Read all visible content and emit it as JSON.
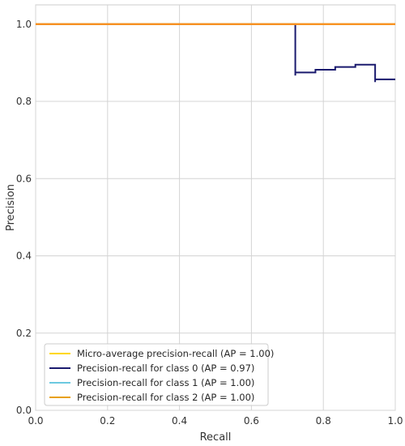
{
  "chart_data": {
    "type": "line",
    "title": "",
    "xlabel": "Recall",
    "ylabel": "Precision",
    "xlim": [
      0.0,
      1.0
    ],
    "ylim": [
      0.0,
      1.05
    ],
    "x_ticks": [
      "0.0",
      "0.2",
      "0.4",
      "0.6",
      "0.8",
      "1.0"
    ],
    "y_ticks": [
      "0.0",
      "0.2",
      "0.4",
      "0.6",
      "0.8",
      "1.0"
    ],
    "x_tick_values": [
      0.0,
      0.2,
      0.4,
      0.6,
      0.8,
      1.0
    ],
    "y_tick_values": [
      0.0,
      0.2,
      0.4,
      0.6,
      0.8,
      1.0
    ],
    "grid": true,
    "legend_position": "bottom-left",
    "series": [
      {
        "name": "Micro-average precision-recall (AP = 1.00)",
        "color": "#ffd700",
        "step": true,
        "x": [
          0.0,
          1.0
        ],
        "y": [
          1.0,
          1.0
        ]
      },
      {
        "name": "Precision-recall for class 0 (AP = 0.97)",
        "color": "#1a1a6e",
        "step": true,
        "x": [
          0.0,
          0.722,
          0.722,
          0.722,
          0.778,
          0.778,
          0.833,
          0.833,
          0.889,
          0.889,
          0.944,
          0.944,
          0.944,
          1.0
        ],
        "y": [
          1.0,
          1.0,
          0.867,
          0.875,
          0.875,
          0.882,
          0.882,
          0.889,
          0.889,
          0.895,
          0.895,
          0.85,
          0.857,
          0.857
        ]
      },
      {
        "name": "Precision-recall for class 1 (AP = 1.00)",
        "color": "#6cc9e0",
        "step": true,
        "x": [
          0.0,
          1.0
        ],
        "y": [
          1.0,
          1.0
        ]
      },
      {
        "name": "Precision-recall for class 2 (AP = 1.00)",
        "color": "#e8a010",
        "step": true,
        "x": [
          0.0,
          1.0
        ],
        "y": [
          1.0,
          1.0
        ]
      }
    ],
    "overlay_color": "#ff8c1a"
  }
}
